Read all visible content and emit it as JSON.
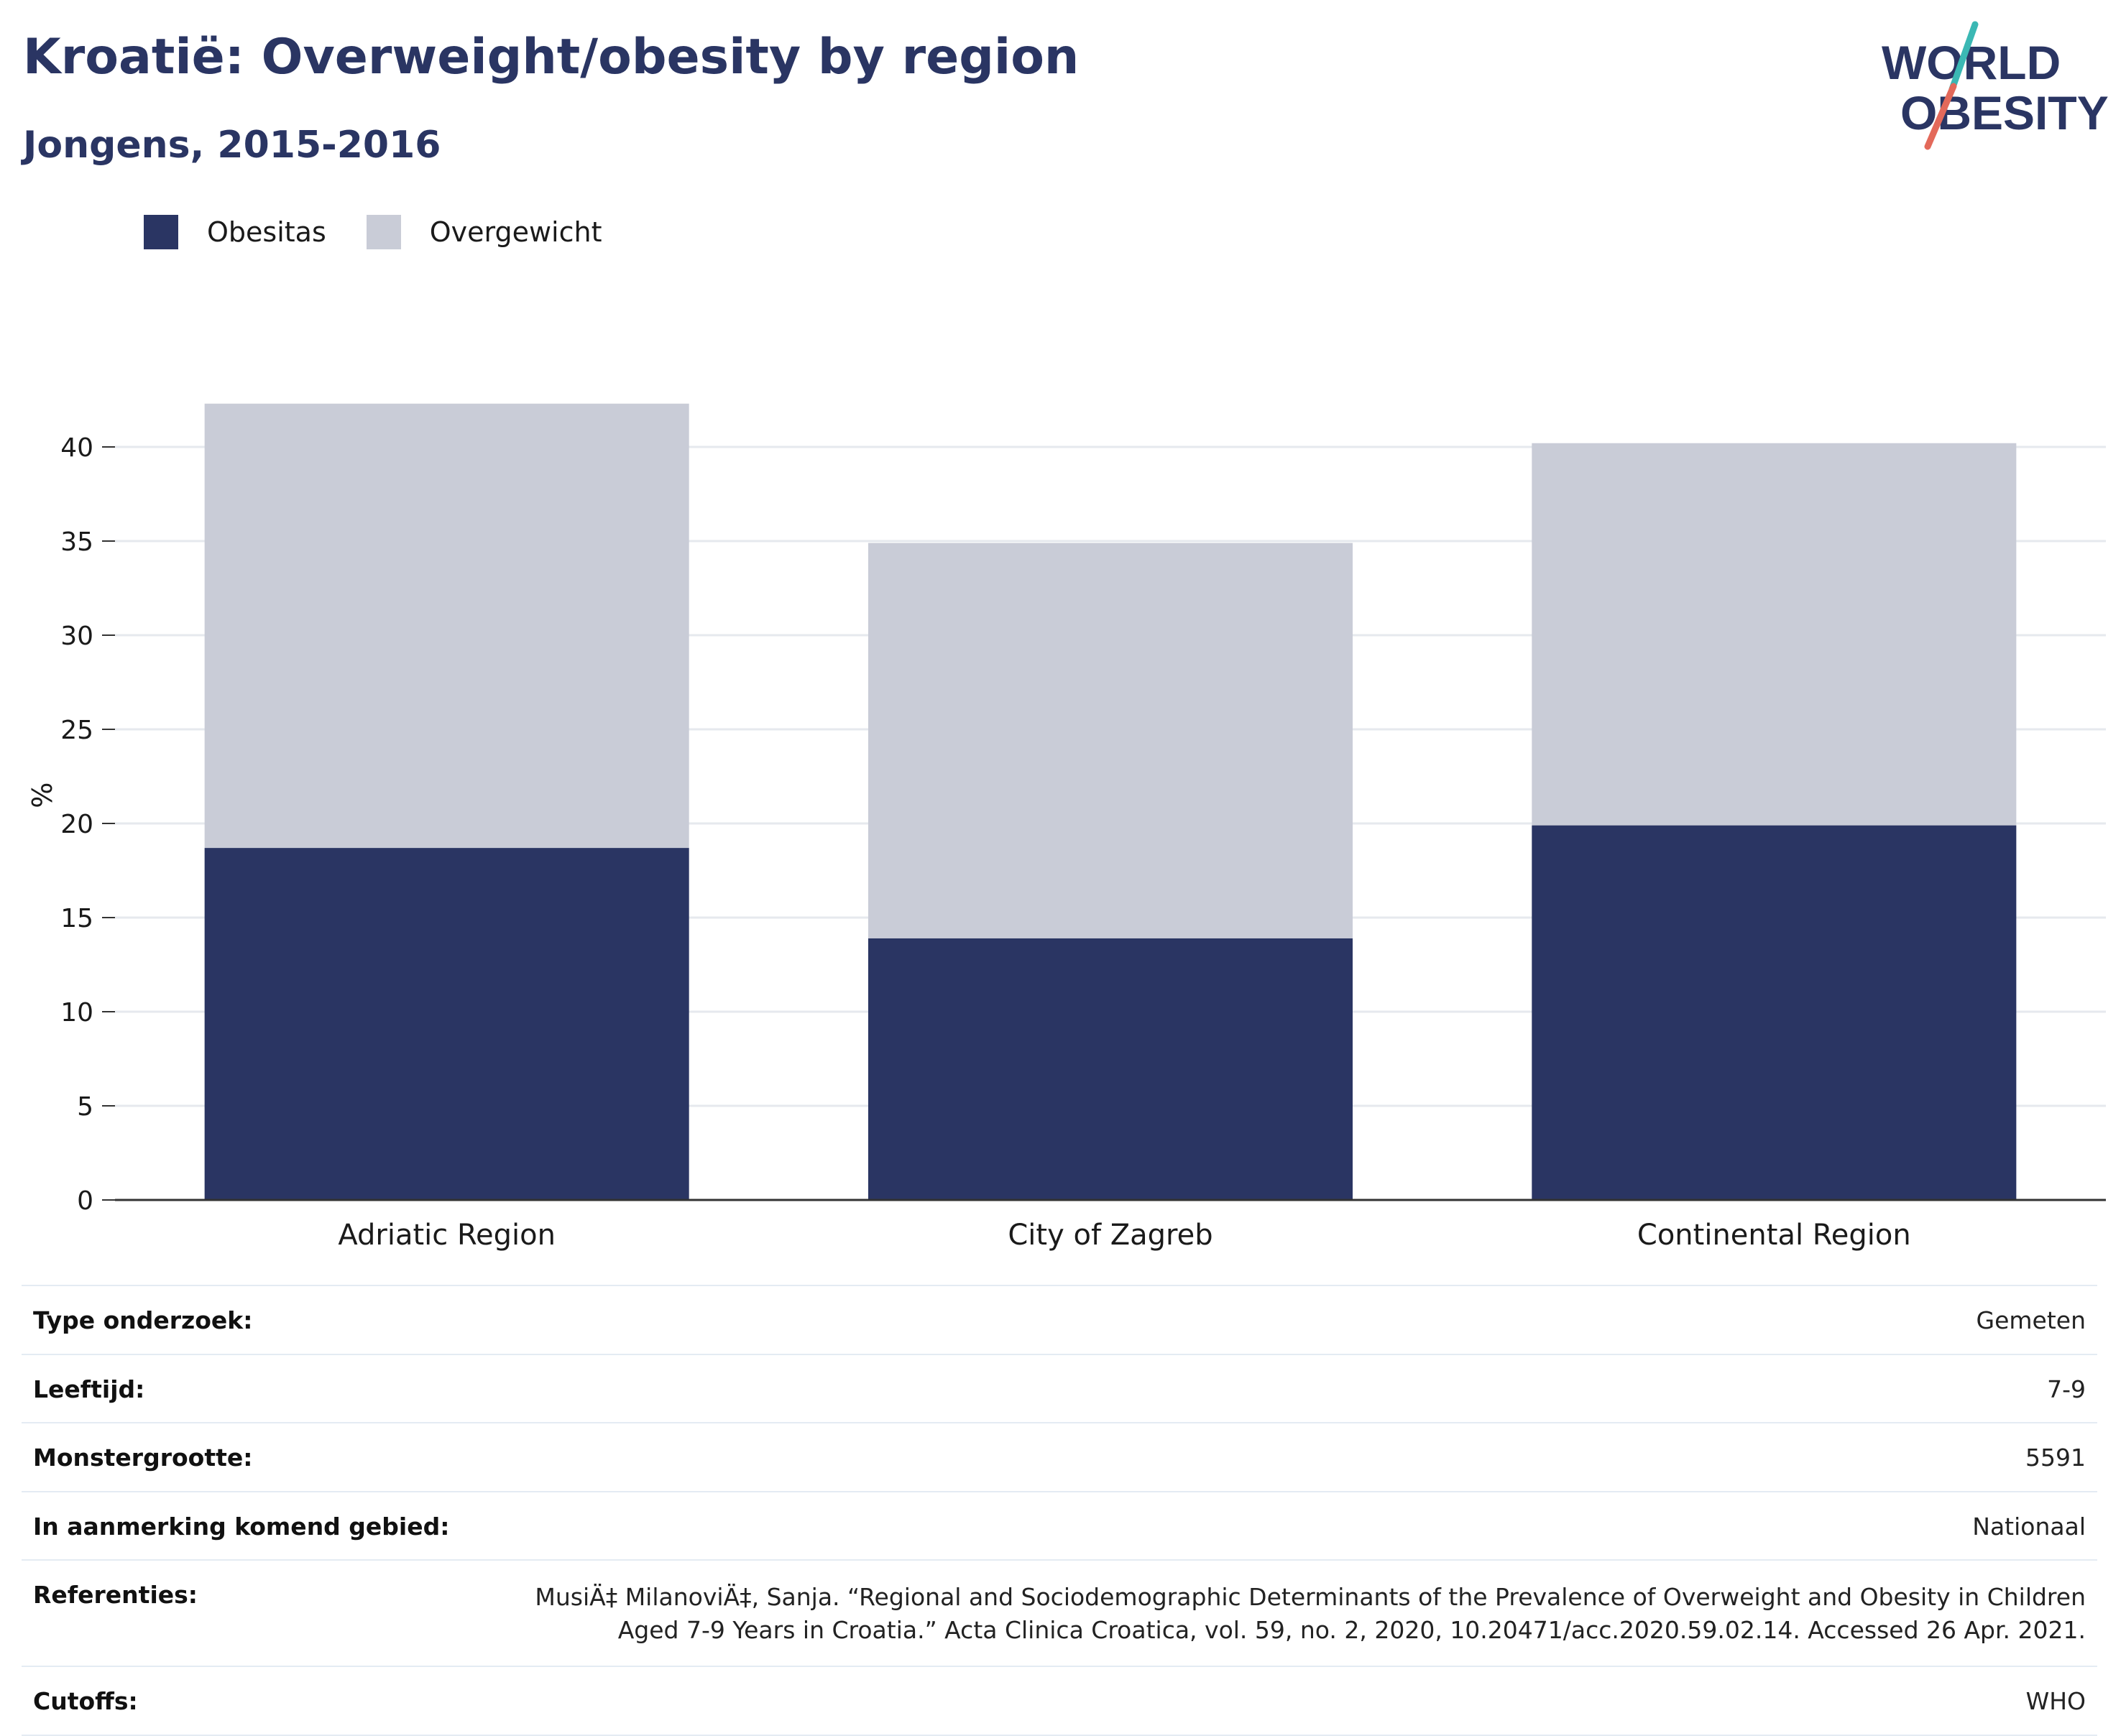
{
  "title": "Kroatië: Overweight/obesity by region",
  "subtitle": "Jongens, 2015-2016",
  "logo": {
    "line1": "WORLD",
    "line2": "OBESITY",
    "accent_top": "#3bb8b4",
    "accent_bottom": "#e3695a",
    "text_color": "#2a3563"
  },
  "legend": [
    {
      "label": "Obesitas",
      "color": "#2a3563"
    },
    {
      "label": "Overgewicht",
      "color": "#c9ccd7"
    }
  ],
  "chart_data": {
    "type": "bar",
    "stacked": true,
    "categories": [
      "Adriatic Region",
      "City of Zagreb",
      "Continental Region"
    ],
    "series": [
      {
        "name": "Obesitas",
        "color": "#2a3563",
        "values": [
          18.7,
          13.9,
          19.9
        ]
      },
      {
        "name": "Overgewicht",
        "color": "#c9ccd7",
        "values": [
          23.6,
          21.0,
          20.3
        ]
      }
    ],
    "ylabel": "%",
    "xlabel": "",
    "ylim": [
      0,
      43
    ],
    "yticks": [
      0,
      5,
      10,
      15,
      20,
      25,
      30,
      35,
      40
    ],
    "grid": true,
    "legend_position": "top-left"
  },
  "info": {
    "rows": [
      {
        "label": "Type onderzoek:",
        "value": "Gemeten"
      },
      {
        "label": "Leeftijd:",
        "value": "7-9"
      },
      {
        "label": "Monstergrootte:",
        "value": "5591"
      },
      {
        "label": "In aanmerking komend gebied:",
        "value": "Nationaal"
      },
      {
        "label": "Referenties:",
        "value": "MusiÄ‡ MilanoviÄ‡, Sanja. “Regional and Sociodemographic Determinants of the Prevalence of Overweight and Obesity in Children Aged 7-9 Years in Croatia.” Acta Clinica Croatica, vol. 59, no. 2, 2020, 10.20471/acc.2020.59.02.14. Accessed 26 Apr. 2021."
      },
      {
        "label": "Cutoffs:",
        "value": "WHO"
      }
    ]
  }
}
